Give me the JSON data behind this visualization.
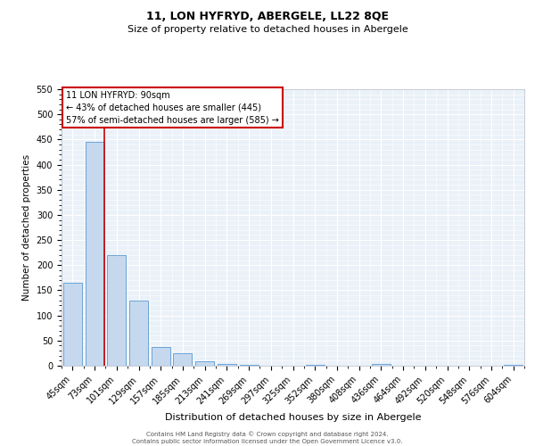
{
  "title": "11, LON HYFRYD, ABERGELE, LL22 8QE",
  "subtitle": "Size of property relative to detached houses in Abergele",
  "xlabel": "Distribution of detached houses by size in Abergele",
  "ylabel": "Number of detached properties",
  "bar_labels": [
    "45sqm",
    "73sqm",
    "101sqm",
    "129sqm",
    "157sqm",
    "185sqm",
    "213sqm",
    "241sqm",
    "269sqm",
    "297sqm",
    "325sqm",
    "352sqm",
    "380sqm",
    "408sqm",
    "436sqm",
    "464sqm",
    "492sqm",
    "520sqm",
    "548sqm",
    "576sqm",
    "604sqm"
  ],
  "bar_values": [
    165,
    445,
    220,
    130,
    37,
    25,
    9,
    4,
    1,
    0,
    0,
    1,
    0,
    0,
    3,
    0,
    0,
    0,
    0,
    0,
    2
  ],
  "bar_color": "#c5d8ed",
  "bar_edge_color": "#5b9bd5",
  "vline_color": "#cc0000",
  "ylim": [
    0,
    550
  ],
  "yticks": [
    0,
    50,
    100,
    150,
    200,
    250,
    300,
    350,
    400,
    450,
    500,
    550
  ],
  "annotation_title": "11 LON HYFRYD: 90sqm",
  "annotation_line1": "← 43% of detached houses are smaller (445)",
  "annotation_line2": "57% of semi-detached houses are larger (585) →",
  "annotation_box_color": "#ffffff",
  "annotation_box_edge": "#cc0000",
  "footer_line1": "Contains HM Land Registry data © Crown copyright and database right 2024.",
  "footer_line2": "Contains public sector information licensed under the Open Government Licence v3.0.",
  "bg_color": "#eaf1f8",
  "fig_bg_color": "#ffffff",
  "grid_color": "#ffffff",
  "title_fontsize": 9,
  "subtitle_fontsize": 8,
  "xlabel_fontsize": 8,
  "ylabel_fontsize": 7.5,
  "tick_fontsize": 7,
  "annotation_fontsize": 7,
  "footer_fontsize": 5
}
